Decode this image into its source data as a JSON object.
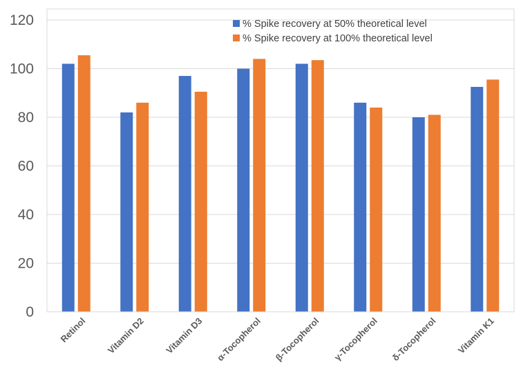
{
  "chart_data": {
    "type": "bar",
    "categories": [
      "Retinol",
      "Vitamin D2",
      "Vitamin D3",
      "α-Tocopherol",
      "β-Tocopherol",
      "γ-Tocopherol",
      "δ-Tocopherol",
      "Vitamin K1"
    ],
    "series": [
      {
        "name": "% Spike recovery at 50% theoretical level",
        "color": "#4472C4",
        "values": [
          102,
          82,
          97,
          100,
          102,
          86,
          80,
          92.5
        ]
      },
      {
        "name": "% Spike recovery at 100% theoretical level",
        "color": "#ED7D31",
        "values": [
          105.5,
          86,
          90.5,
          104,
          103.5,
          84,
          81,
          95.5
        ]
      }
    ],
    "ylim": [
      0,
      120
    ],
    "yticks": [
      0,
      20,
      40,
      60,
      80,
      100,
      120
    ],
    "grid": true,
    "legend_position": "top-right"
  }
}
